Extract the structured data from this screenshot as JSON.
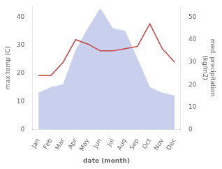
{
  "chart_data": {
    "type": "line",
    "xlabel": "date (month)",
    "ylabel": "max temp (C)",
    "y2label": "med. precipitation\n(kg/m2)",
    "categories": [
      "Jan",
      "Feb",
      "Mar",
      "Apr",
      "May",
      "Jun",
      "Jul",
      "Aug",
      "Sep",
      "Oct",
      "Nov",
      "Dec"
    ],
    "series": [
      {
        "type": "area",
        "color": "#c8d0ee",
        "values": [
          13,
          15,
          16,
          28,
          36,
          43,
          36,
          35,
          25,
          15,
          13,
          12
        ]
      },
      {
        "type": "line",
        "color": "#c94040",
        "axis": "y2",
        "values": [
          24,
          24,
          30,
          40,
          38,
          35,
          35,
          36,
          37,
          47,
          36,
          30
        ]
      }
    ],
    "ylim": [
      0,
      44
    ],
    "yticks": [
      0,
      10,
      20,
      30,
      40
    ],
    "y2lim": [
      0,
      55
    ],
    "y2ticks": [
      0,
      10,
      20,
      30,
      40,
      50
    ],
    "grid": false
  }
}
